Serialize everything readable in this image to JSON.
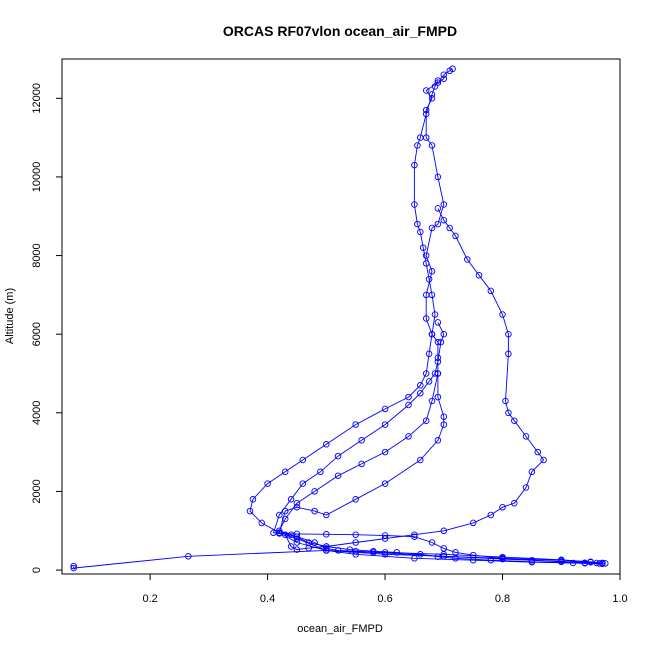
{
  "chart_data": {
    "type": "line",
    "title": "ORCAS RF07vlon ocean_air_FMPD",
    "xlabel": "ocean_air_FMPD",
    "ylabel": "Altitude (m)",
    "xlim": [
      0.05,
      1.0
    ],
    "ylim": [
      -100,
      13000
    ],
    "x_ticks": [
      0.2,
      0.4,
      0.6,
      0.8,
      1.0
    ],
    "y_ticks": [
      0,
      2000,
      4000,
      6000,
      8000,
      10000,
      12000
    ],
    "x_tick_labels": [
      "0.2",
      "0.4",
      "0.6",
      "0.8",
      "1.0"
    ],
    "y_tick_labels": [
      "0",
      "2000",
      "4000",
      "6000",
      "8000",
      "10000",
      "12000"
    ],
    "grid": false,
    "legend": "none",
    "color": "#0000ff",
    "marker": "open-circle",
    "series": [
      {
        "x": [
          0.07,
          0.07,
          0.265,
          0.5,
          0.58,
          0.7,
          0.8,
          0.9,
          0.95,
          0.97,
          0.975,
          0.94,
          0.85,
          0.75,
          0.65,
          0.55,
          0.5,
          0.45,
          0.42,
          0.43,
          0.45,
          0.48,
          0.5,
          0.55,
          0.6,
          0.66,
          0.69,
          0.7,
          0.7,
          0.69,
          0.69,
          0.69,
          0.69,
          0.68,
          0.67,
          0.67,
          0.68,
          0.67,
          0.68,
          0.69,
          0.7,
          0.69,
          0.68,
          0.67,
          0.67,
          0.68,
          0.67,
          0.69,
          0.7,
          0.7,
          0.71,
          0.715
        ],
        "y": [
          100,
          50,
          350,
          500,
          450,
          350,
          300,
          250,
          200,
          180,
          170,
          175,
          200,
          250,
          300,
          400,
          500,
          700,
          950,
          1500,
          1600,
          1500,
          1400,
          1800,
          2200,
          2800,
          3300,
          3700,
          3900,
          4400,
          5000,
          5400,
          5800,
          6000,
          6400,
          7000,
          7600,
          8000,
          8700,
          8800,
          9300,
          10000,
          10800,
          11000,
          11700,
          12000,
          12200,
          12400,
          12500,
          12600,
          12700,
          12750
        ]
      },
      {
        "x": [
          0.69,
          0.685,
          0.68,
          0.67,
          0.66,
          0.655,
          0.65,
          0.65,
          0.655,
          0.66,
          0.665,
          0.67,
          0.675,
          0.68,
          0.685,
          0.68,
          0.675,
          0.67,
          0.66,
          0.64,
          0.6,
          0.55,
          0.5,
          0.46,
          0.43,
          0.4,
          0.375,
          0.37,
          0.39,
          0.42,
          0.45,
          0.48,
          0.5,
          0.52,
          0.55,
          0.6,
          0.7,
          0.8,
          0.9,
          0.95,
          0.97
        ],
        "y": [
          12450,
          12300,
          12100,
          11600,
          11000,
          10800,
          10300,
          9300,
          8800,
          8600,
          8200,
          7800,
          7400,
          7000,
          6500,
          6000,
          5500,
          5000,
          4700,
          4400,
          4100,
          3700,
          3200,
          2800,
          2500,
          2200,
          1800,
          1500,
          1200,
          950,
          850,
          700,
          550,
          500,
          480,
          450,
          400,
          330,
          260,
          210,
          180
        ]
      },
      {
        "x": [
          0.69,
          0.7,
          0.71,
          0.72,
          0.74,
          0.76,
          0.78,
          0.8,
          0.81,
          0.81,
          0.805,
          0.81,
          0.82,
          0.84,
          0.86,
          0.87,
          0.85,
          0.84,
          0.82,
          0.8,
          0.78,
          0.75,
          0.7,
          0.65,
          0.6,
          0.55,
          0.5,
          0.47,
          0.45,
          0.44,
          0.43,
          0.45,
          0.5,
          0.6,
          0.7,
          0.8,
          0.9,
          0.96
        ],
        "y": [
          9200,
          8900,
          8700,
          8500,
          7900,
          7500,
          7100,
          6500,
          6000,
          5500,
          4300,
          4000,
          3800,
          3400,
          3000,
          2800,
          2500,
          2100,
          1700,
          1600,
          1400,
          1200,
          1000,
          900,
          800,
          700,
          600,
          560,
          520,
          600,
          900,
          800,
          500,
          400,
          350,
          280,
          220,
          180
        ]
      },
      {
        "x": [
          0.69,
          0.7,
          0.695,
          0.69,
          0.685,
          0.675,
          0.66,
          0.64,
          0.6,
          0.56,
          0.52,
          0.49,
          0.46,
          0.44,
          0.42,
          0.41,
          0.42,
          0.45,
          0.5,
          0.55,
          0.6,
          0.65,
          0.68,
          0.7,
          0.72,
          0.75,
          0.8,
          0.85,
          0.9,
          0.94,
          0.965
        ],
        "y": [
          6300,
          6000,
          5800,
          5300,
          5000,
          4800,
          4500,
          4200,
          3700,
          3300,
          2900,
          2500,
          2200,
          1800,
          1400,
          950,
          930,
          920,
          910,
          900,
          880,
          850,
          700,
          550,
          450,
          380,
          300,
          250,
          210,
          185,
          170
        ]
      },
      {
        "x": [
          0.69,
          0.68,
          0.67,
          0.64,
          0.6,
          0.56,
          0.52,
          0.48,
          0.45,
          0.43,
          0.42,
          0.44,
          0.47,
          0.5,
          0.54,
          0.58,
          0.62,
          0.66,
          0.69,
          0.72,
          0.78,
          0.85,
          0.92,
          0.97
        ],
        "y": [
          5000,
          4300,
          3800,
          3400,
          3000,
          2700,
          2400,
          2000,
          1700,
          1300,
          1000,
          900,
          700,
          600,
          520,
          480,
          450,
          400,
          340,
          300,
          250,
          210,
          180,
          160
        ]
      }
    ]
  }
}
